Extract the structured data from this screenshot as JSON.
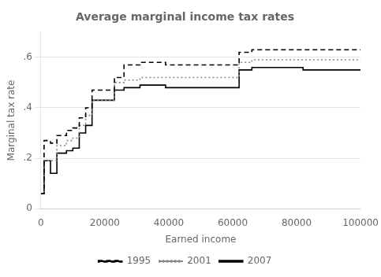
{
  "chart_data": {
    "type": "line",
    "title": "Average marginal income tax rates",
    "x_label": "Earned income",
    "y_label": "Marginal tax rate",
    "xlim": [
      0,
      100000
    ],
    "ylim": [
      0,
      0.7
    ],
    "xticks": [
      0,
      20000,
      40000,
      60000,
      80000,
      100000
    ],
    "yticks": [
      0,
      {
        "value": 0.2,
        "label": ".2"
      },
      {
        "value": 0.4,
        "label": ".4"
      },
      {
        "value": 0.6,
        "label": ".6"
      }
    ],
    "grid": "y",
    "legend": "bottom",
    "series": [
      {
        "name": "1995",
        "color": "#000000",
        "line_style": "dashed",
        "x": [
          0,
          1000,
          1000,
          3000,
          3000,
          5000,
          5000,
          8000,
          8000,
          10000,
          10000,
          12000,
          12000,
          14000,
          14000,
          16000,
          16000,
          23000,
          23000,
          26000,
          26000,
          31000,
          31000,
          39000,
          39000,
          62000,
          62000,
          66000,
          66000,
          100000
        ],
        "values": [
          0.06,
          0.06,
          0.27,
          0.27,
          0.26,
          0.26,
          0.29,
          0.29,
          0.31,
          0.31,
          0.32,
          0.32,
          0.36,
          0.36,
          0.4,
          0.4,
          0.47,
          0.47,
          0.52,
          0.52,
          0.57,
          0.57,
          0.58,
          0.58,
          0.57,
          0.57,
          0.62,
          0.62,
          0.63,
          0.63
        ]
      },
      {
        "name": "2001",
        "color": "#888888",
        "line_style": "dotted",
        "x": [
          0,
          1000,
          1000,
          3000,
          3000,
          5000,
          5000,
          8000,
          8000,
          10000,
          10000,
          12000,
          12000,
          14000,
          14000,
          16000,
          16000,
          23000,
          23000,
          26000,
          26000,
          31000,
          31000,
          39000,
          39000,
          62000,
          62000,
          66000,
          66000,
          100000
        ],
        "values": [
          0.06,
          0.06,
          0.19,
          0.19,
          0.19,
          0.19,
          0.25,
          0.25,
          0.27,
          0.27,
          0.28,
          0.28,
          0.33,
          0.33,
          0.37,
          0.37,
          0.43,
          0.43,
          0.5,
          0.5,
          0.51,
          0.51,
          0.52,
          0.52,
          0.52,
          0.52,
          0.58,
          0.58,
          0.59,
          0.59
        ]
      },
      {
        "name": "2007",
        "color": "#000000",
        "line_style": "solid",
        "x": [
          0,
          1000,
          1000,
          3000,
          3000,
          5000,
          5000,
          8000,
          8000,
          10000,
          10000,
          12000,
          12000,
          14000,
          14000,
          16000,
          16000,
          23000,
          23000,
          26000,
          26000,
          31000,
          31000,
          39000,
          39000,
          62000,
          62000,
          66000,
          66000,
          82000,
          82000,
          100000
        ],
        "values": [
          0.06,
          0.06,
          0.19,
          0.19,
          0.14,
          0.14,
          0.22,
          0.22,
          0.23,
          0.23,
          0.24,
          0.24,
          0.3,
          0.3,
          0.33,
          0.33,
          0.43,
          0.43,
          0.47,
          0.47,
          0.48,
          0.48,
          0.49,
          0.49,
          0.48,
          0.48,
          0.55,
          0.55,
          0.56,
          0.56,
          0.55,
          0.55
        ]
      }
    ]
  }
}
